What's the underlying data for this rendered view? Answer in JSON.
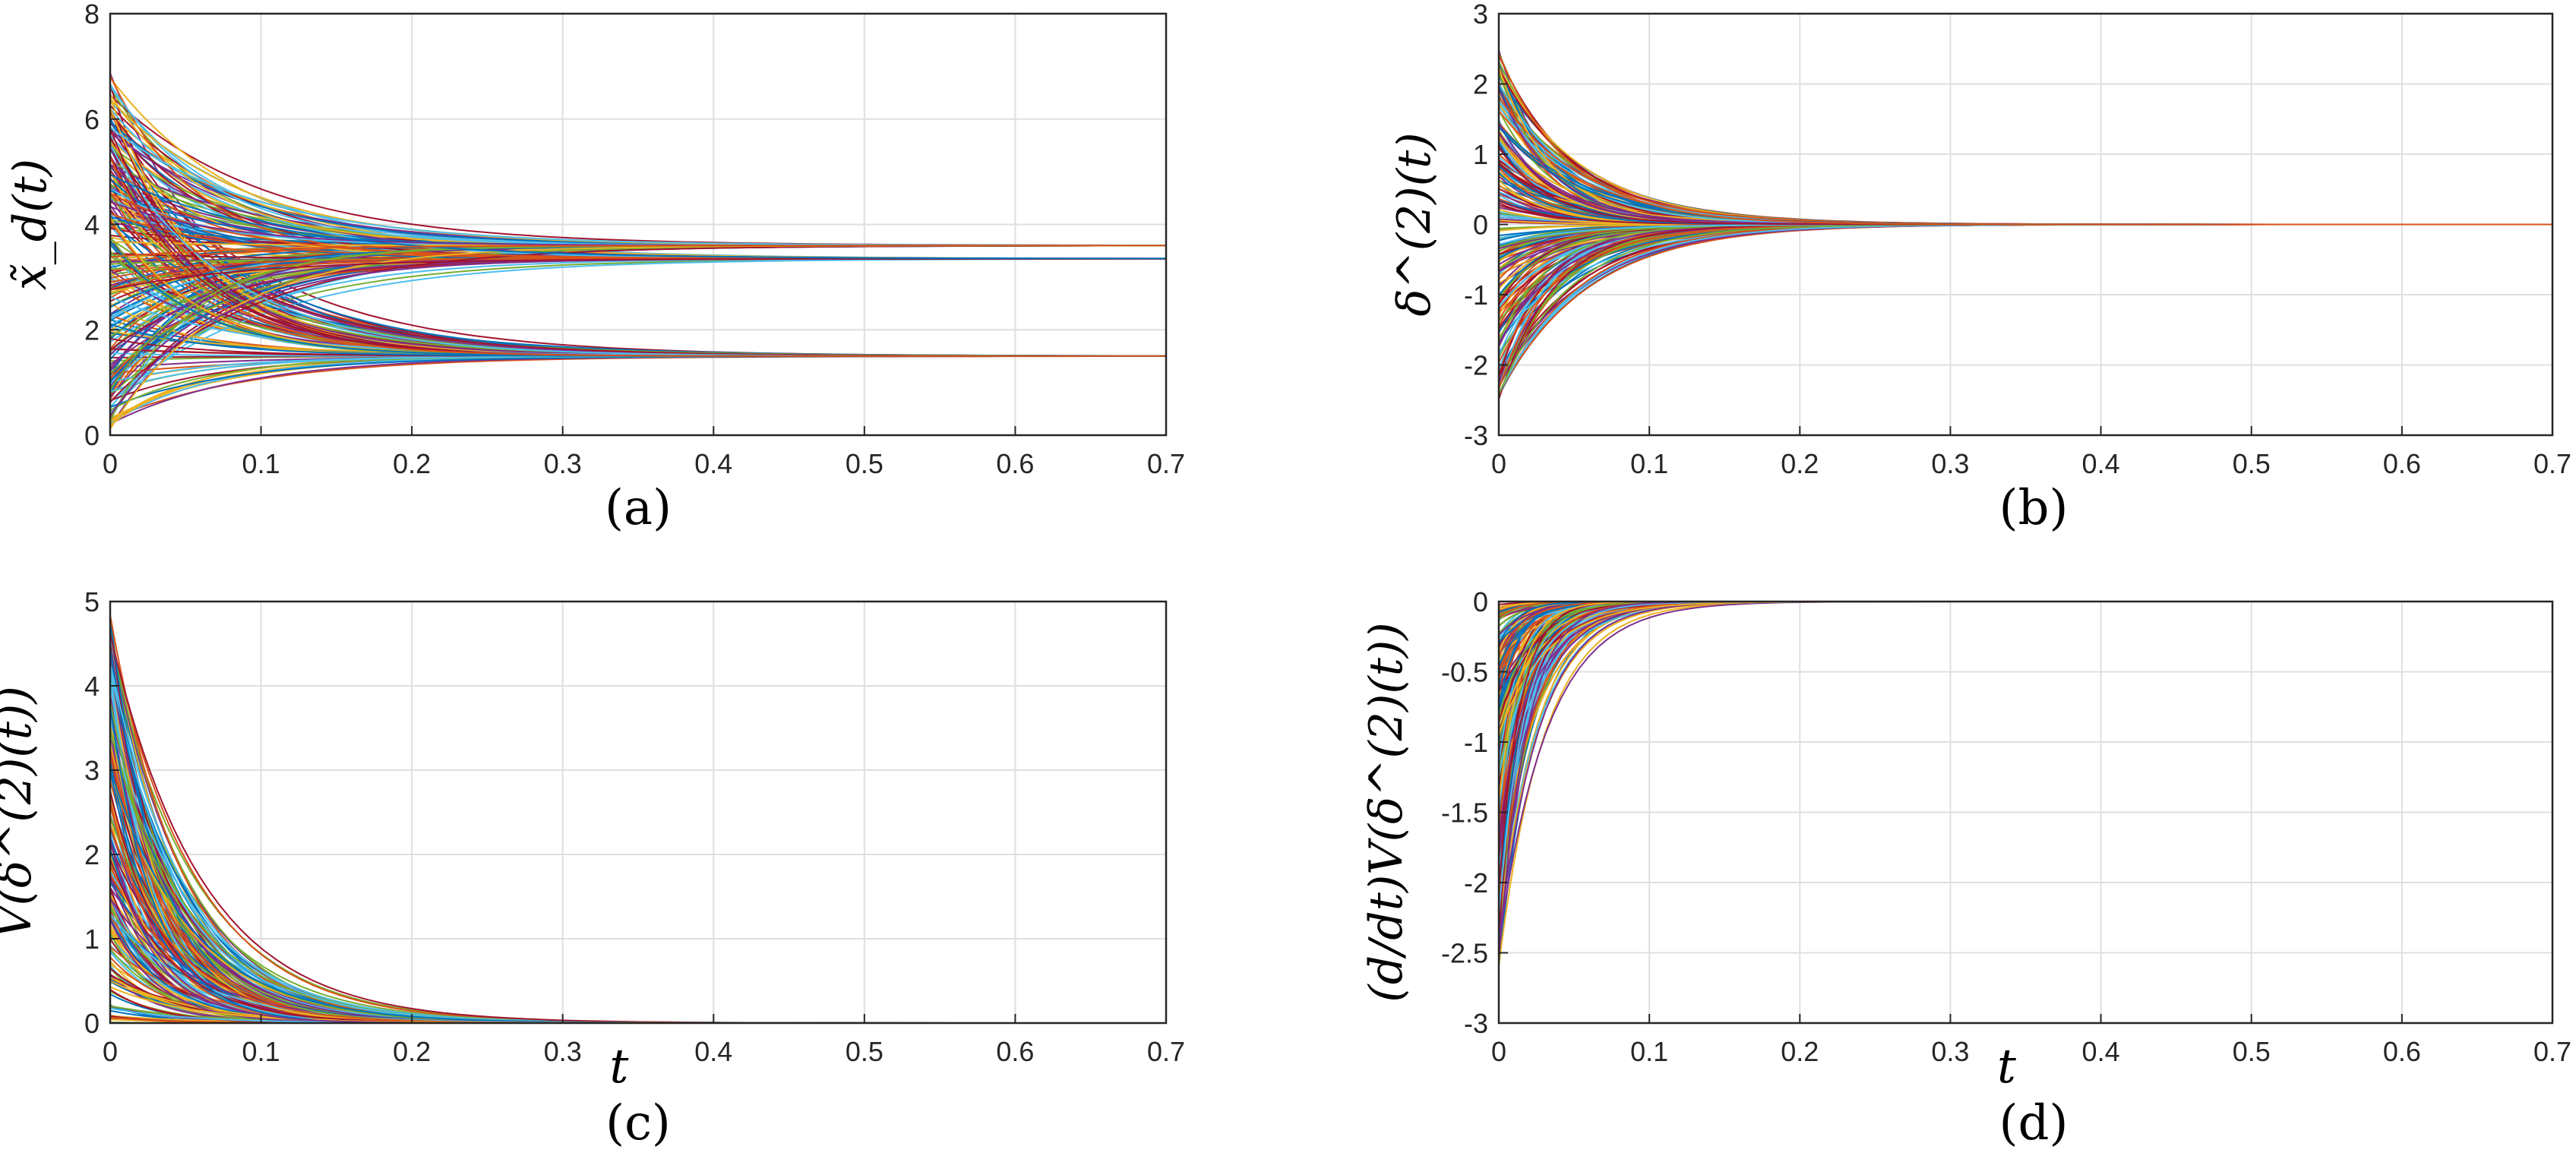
{
  "chart_data": [
    {
      "id": "a",
      "type": "line",
      "caption": "(a)",
      "ylabel": "x̃_d(t)",
      "xlabel": "",
      "xlim": [
        0,
        0.7
      ],
      "ylim": [
        0,
        8
      ],
      "xticks": [
        0,
        0.1,
        0.2,
        0.3,
        0.4,
        0.5,
        0.6,
        0.7
      ],
      "xtick_labels": [
        "0",
        "0.1",
        "0.2",
        "0.3",
        "0.4",
        "0.5",
        "0.6",
        "0.7"
      ],
      "yticks": [
        0,
        2,
        4,
        6,
        8
      ],
      "ytick_labels": [
        "0",
        "2",
        "4",
        "6",
        "8"
      ],
      "grid": true,
      "description": "Many trajectories starting between 0 and 7 converging to three equilibria",
      "model": {
        "kind": "converge",
        "equilibria": [
          3.6,
          3.35,
          1.5
        ],
        "init_range": [
          0.1,
          6.9
        ],
        "rate_range": [
          9,
          18
        ],
        "n_series": 240
      }
    },
    {
      "id": "b",
      "type": "line",
      "caption": "(b)",
      "ylabel": "δ^(2)(t)",
      "xlabel": "",
      "xlim": [
        0,
        0.7
      ],
      "ylim": [
        -3,
        3
      ],
      "xticks": [
        0,
        0.1,
        0.2,
        0.3,
        0.4,
        0.5,
        0.6,
        0.7
      ],
      "xtick_labels": [
        "0",
        "0.1",
        "0.2",
        "0.3",
        "0.4",
        "0.5",
        "0.6",
        "0.7"
      ],
      "yticks": [
        -3,
        -2,
        -1,
        0,
        1,
        2,
        3
      ],
      "ytick_labels": [
        "-3",
        "-2",
        "-1",
        "0",
        "1",
        "2",
        "3"
      ],
      "grid": true,
      "description": "Errors starting within ±2.5 decaying to zero by t≈0.3",
      "model": {
        "kind": "converge",
        "equilibria": [
          0
        ],
        "init_range": [
          -2.5,
          2.5
        ],
        "rate_range": [
          16,
          32
        ],
        "n_series": 240
      }
    },
    {
      "id": "c",
      "type": "line",
      "caption": "(c)",
      "ylabel": "V(δ^(2)(t))",
      "xlabel": "t",
      "xlim": [
        0,
        0.7
      ],
      "ylim": [
        0,
        5
      ],
      "xticks": [
        0,
        0.1,
        0.2,
        0.3,
        0.4,
        0.5,
        0.6,
        0.7
      ],
      "xtick_labels": [
        "0",
        "0.1",
        "0.2",
        "0.3",
        "0.4",
        "0.5",
        "0.6",
        "0.7"
      ],
      "yticks": [
        0,
        1,
        2,
        3,
        4,
        5
      ],
      "ytick_labels": [
        "0",
        "1",
        "2",
        "3",
        "4",
        "5"
      ],
      "grid": true,
      "description": "Lyapunov function values starting up to ~4.9 decaying to zero",
      "model": {
        "kind": "converge",
        "equilibria": [
          0
        ],
        "init_range": [
          0,
          4.9
        ],
        "rate_range": [
          16,
          34
        ],
        "n_series": 200
      }
    },
    {
      "id": "d",
      "type": "line",
      "caption": "(d)",
      "ylabel": "(d/dt)V(δ^(2)(t))",
      "xlabel": "t",
      "xlim": [
        0,
        0.7
      ],
      "ylim": [
        -3,
        0
      ],
      "xticks": [
        0,
        0.1,
        0.2,
        0.3,
        0.4,
        0.5,
        0.6,
        0.7
      ],
      "xtick_labels": [
        "0",
        "0.1",
        "0.2",
        "0.3",
        "0.4",
        "0.5",
        "0.6",
        "0.7"
      ],
      "yticks": [
        -3,
        -2.5,
        -2,
        -1.5,
        -1,
        -0.5,
        0
      ],
      "ytick_labels": [
        "-3",
        "-2.5",
        "-2",
        "-1.5",
        "-1",
        "-0.5",
        "0"
      ],
      "grid": true,
      "description": "Lyapunov derivative starting as low as ~-2.6 rising to zero",
      "model": {
        "kind": "converge",
        "equilibria": [
          0
        ],
        "init_range": [
          -2.6,
          0
        ],
        "rate_range": [
          30,
          80
        ],
        "n_series": 200
      }
    }
  ],
  "colors": [
    "#0072BD",
    "#D95319",
    "#EDB120",
    "#7E2F8E",
    "#77AC30",
    "#4DBEEE",
    "#A2142F"
  ]
}
